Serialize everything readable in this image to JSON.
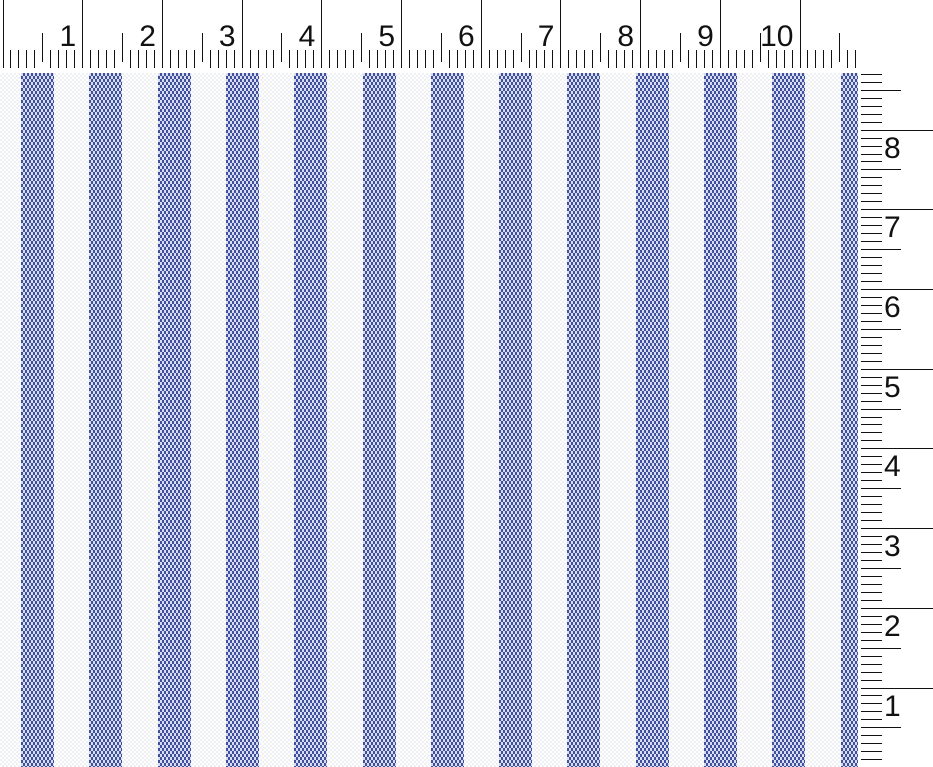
{
  "scene": {
    "description": "Scanned swatch of white fabric with woven blue vertical stripes, framed by a horizontal measuring ruler on top and a vertical measuring ruler on the right"
  },
  "top_ruler": {
    "orientation": "horizontal",
    "unit_labels": [
      "1",
      "2",
      "3",
      "4",
      "5",
      "6",
      "7",
      "8",
      "9",
      "10"
    ],
    "minor_ticks_per_unit": 10
  },
  "right_ruler": {
    "orientation": "vertical",
    "unit_labels": [
      "8",
      "7",
      "6",
      "5",
      "4",
      "3",
      "2",
      "1"
    ],
    "minor_ticks_per_unit": 10
  },
  "fabric": {
    "pattern": "vertical stripes",
    "stripe_count": 13
  },
  "colors": {
    "paper_white": "#ffffff",
    "tick_black": "#111111",
    "stripe_blue_dark": "#40509c",
    "stripe_blue_light": "#d7dcef",
    "fabric_white": "#ffffff",
    "fabric_white_shadow": "#eef0f4"
  }
}
